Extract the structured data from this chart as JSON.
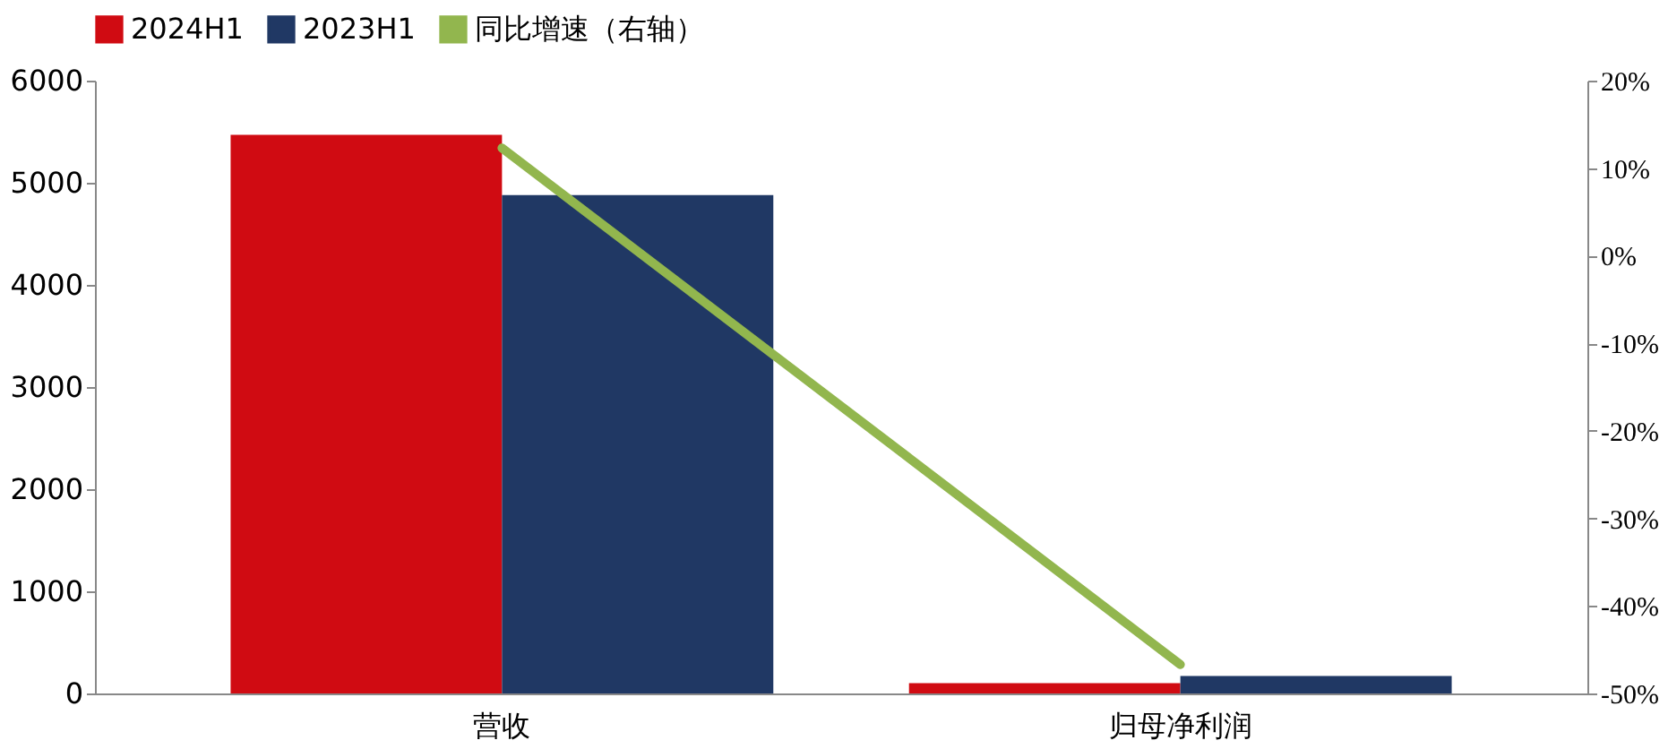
{
  "chart_data": {
    "type": "bar",
    "categories": [
      "营收",
      "归母净利润"
    ],
    "series": [
      {
        "name": "2024H1",
        "color": "#d00b12",
        "values": [
          5470,
          100
        ]
      },
      {
        "name": "2023H1",
        "color": "#203864",
        "values": [
          4880,
          170
        ]
      },
      {
        "name": "同比增速（右轴）",
        "color": "#92b64e",
        "type": "line",
        "axis": "y2",
        "values": [
          12.3,
          -46.7
        ]
      }
    ],
    "ylim": [
      0,
      6000
    ],
    "yticks": [
      0,
      1000,
      2000,
      3000,
      4000,
      5000,
      6000
    ],
    "y2lim": [
      -50,
      20
    ],
    "y2ticks": [
      {
        "value": -50,
        "label": "-50%"
      },
      {
        "value": -40,
        "label": "-40%"
      },
      {
        "value": -30,
        "label": "-30%"
      },
      {
        "value": -20,
        "label": "-20%"
      },
      {
        "value": -10,
        "label": "-10%"
      },
      {
        "value": 0,
        "label": "0%"
      },
      {
        "value": 10,
        "label": "10%"
      },
      {
        "value": 20,
        "label": "20%"
      }
    ],
    "legend": "top",
    "grid": false
  }
}
